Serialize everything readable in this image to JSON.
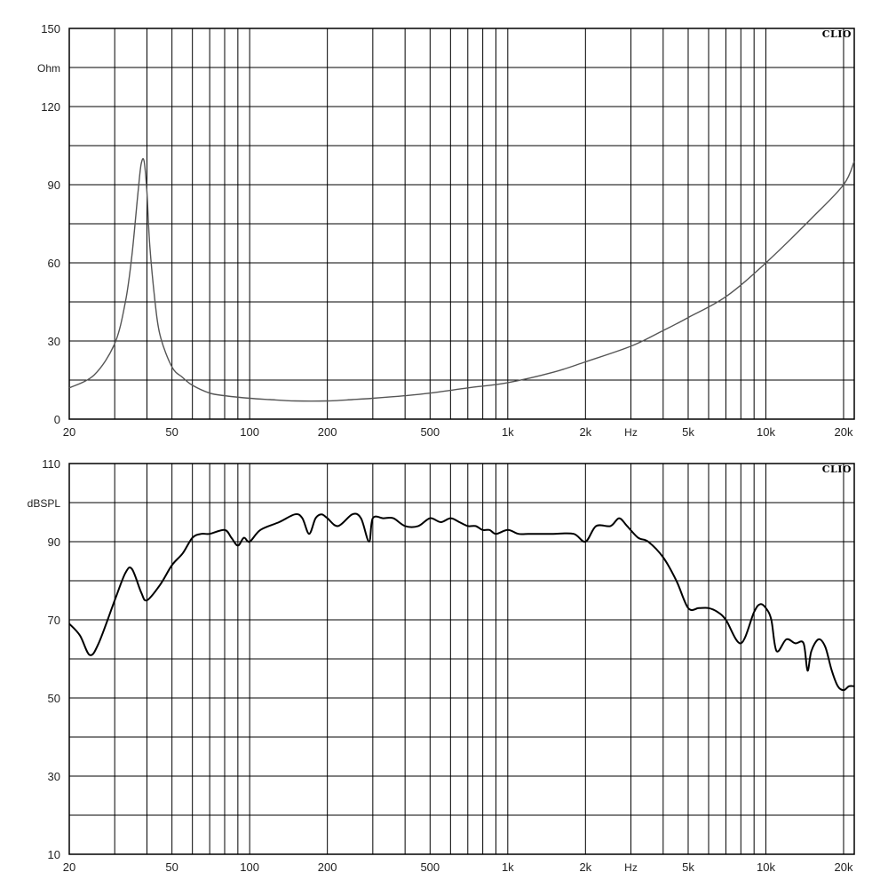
{
  "chart_data": [
    {
      "type": "line",
      "title": "",
      "brand": "CLIO",
      "y_unit_label": "Ohm",
      "x_unit_label": "Hz",
      "x_scale": "log",
      "xlim": [
        20,
        22000
      ],
      "ylim": [
        0,
        150
      ],
      "y_ticks": [
        0,
        30,
        60,
        90,
        120,
        150
      ],
      "y_tick_labels": [
        "0",
        "30",
        "60",
        "90",
        "120",
        "150"
      ],
      "x_ticks": [
        20,
        50,
        100,
        200,
        500,
        1000,
        2000,
        5000,
        10000,
        20000
      ],
      "x_tick_labels": [
        "20",
        "50",
        "100",
        "200",
        "500",
        "1k",
        "2k",
        "5k",
        "10k",
        "20k"
      ],
      "grid": true,
      "line_color": "#555555",
      "series": [
        {
          "x": [
            20,
            25,
            30,
            33,
            35,
            37,
            38,
            39,
            40,
            41,
            43,
            45,
            50,
            55,
            60,
            70,
            80,
            100,
            120,
            150,
            200,
            250,
            300,
            400,
            500,
            700,
            1000,
            1500,
            2000,
            3000,
            4000,
            5000,
            7000,
            10000,
            15000,
            20000,
            22000
          ],
          "y": [
            12,
            17,
            29,
            45,
            63,
            88,
            98,
            99,
            87,
            67,
            45,
            32,
            20,
            16,
            13,
            10,
            9,
            8,
            7.5,
            7,
            7,
            7.5,
            8,
            9,
            10,
            12,
            14,
            18,
            22,
            28,
            34,
            39,
            47,
            60,
            77,
            90,
            99
          ]
        }
      ]
    },
    {
      "type": "line",
      "title": "",
      "brand": "CLIO",
      "y_unit_label": "dBSPL",
      "x_unit_label": "Hz",
      "x_scale": "log",
      "xlim": [
        20,
        22000
      ],
      "ylim": [
        10,
        110
      ],
      "y_ticks": [
        10,
        30,
        50,
        70,
        90,
        110
      ],
      "y_tick_labels": [
        "10",
        "30",
        "50",
        "70",
        "90",
        "110"
      ],
      "x_ticks": [
        20,
        50,
        100,
        200,
        500,
        1000,
        2000,
        5000,
        10000,
        20000
      ],
      "x_tick_labels": [
        "20",
        "50",
        "100",
        "200",
        "500",
        "1k",
        "2k",
        "5k",
        "10k",
        "20k"
      ],
      "grid": true,
      "line_color": "#000000",
      "series": [
        {
          "x": [
            20,
            22,
            24,
            26,
            30,
            33,
            35,
            38,
            40,
            45,
            50,
            55,
            60,
            65,
            70,
            80,
            85,
            90,
            95,
            100,
            110,
            130,
            150,
            160,
            170,
            180,
            190,
            200,
            220,
            250,
            270,
            290,
            300,
            330,
            360,
            400,
            450,
            500,
            550,
            600,
            650,
            700,
            750,
            800,
            850,
            900,
            1000,
            1100,
            1200,
            1300,
            1500,
            1800,
            2000,
            2200,
            2500,
            2700,
            2900,
            3200,
            3500,
            4000,
            4500,
            5000,
            5500,
            6000,
            6500,
            7000,
            8000,
            9000,
            9500,
            10000,
            10500,
            11000,
            12000,
            13000,
            14000,
            14500,
            15000,
            16000,
            17000,
            18000,
            19000,
            20000,
            21000,
            22000
          ],
          "y": [
            69,
            66,
            61,
            64,
            75,
            82,
            83,
            77,
            75,
            79,
            84,
            87,
            91,
            92,
            92,
            93,
            91,
            89,
            91,
            90,
            93,
            95,
            97,
            96,
            92,
            96,
            97,
            96,
            94,
            97,
            96,
            90,
            96,
            96,
            96,
            94,
            94,
            96,
            95,
            96,
            95,
            94,
            94,
            93,
            93,
            92,
            93,
            92,
            92,
            92,
            92,
            92,
            90,
            94,
            94,
            96,
            94,
            91,
            90,
            86,
            80,
            73,
            73,
            73,
            72,
            70,
            64,
            72,
            74,
            73,
            70,
            62,
            65,
            64,
            64,
            57,
            62,
            65,
            63,
            57,
            53,
            52,
            53,
            53
          ]
        }
      ]
    }
  ]
}
